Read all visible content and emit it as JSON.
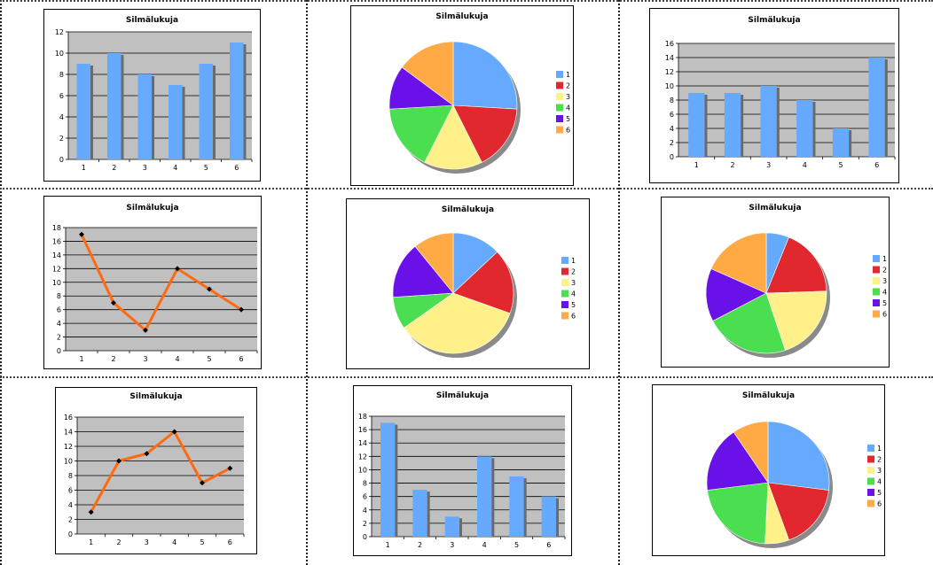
{
  "palette": [
    "#66aaff",
    "#e0282e",
    "#fff08a",
    "#4ade50",
    "#6a10e8",
    "#ffaa44"
  ],
  "line_color": "#ff6a10",
  "plot_bg": "#c0c0c0",
  "chart_data": [
    {
      "type": "bar",
      "title": "Silmälukuja",
      "categories": [
        "1",
        "2",
        "3",
        "4",
        "5",
        "6"
      ],
      "values": [
        9,
        10,
        8,
        7,
        9,
        11
      ],
      "ylim": [
        0,
        12
      ],
      "ystep": 2,
      "grid": true
    },
    {
      "type": "pie",
      "title": "Silmälukuja",
      "categories": [
        "1",
        "2",
        "3",
        "4",
        "5",
        "6"
      ],
      "values": [
        14,
        9,
        8,
        9,
        6,
        8
      ],
      "legend": "right"
    },
    {
      "type": "bar",
      "title": "Silmälukuja",
      "categories": [
        "1",
        "2",
        "3",
        "4",
        "5",
        "6"
      ],
      "values": [
        9,
        9,
        10,
        8,
        4,
        14
      ],
      "ylim": [
        0,
        16
      ],
      "ystep": 2,
      "grid": true
    },
    {
      "type": "line",
      "title": "Silmälukuja",
      "categories": [
        "1",
        "2",
        "3",
        "4",
        "5",
        "6"
      ],
      "values": [
        17,
        7,
        3,
        12,
        9,
        6
      ],
      "ylim": [
        0,
        18
      ],
      "ystep": 2,
      "grid": true
    },
    {
      "type": "pie",
      "title": "Silmälukuja",
      "categories": [
        "1",
        "2",
        "3",
        "4",
        "5",
        "6"
      ],
      "values": [
        6,
        8,
        16,
        4,
        7,
        5
      ],
      "legend": "right"
    },
    {
      "type": "pie",
      "title": "Silmälukuja",
      "categories": [
        "1",
        "2",
        "3",
        "4",
        "5",
        "6"
      ],
      "values": [
        3,
        9,
        10,
        11,
        7,
        9
      ],
      "legend": "right"
    },
    {
      "type": "line",
      "title": "Silmälukuja",
      "categories": [
        "1",
        "2",
        "3",
        "4",
        "5",
        "6"
      ],
      "values": [
        3,
        10,
        11,
        14,
        7,
        9
      ],
      "ylim": [
        0,
        16
      ],
      "ystep": 2,
      "grid": true
    },
    {
      "type": "bar",
      "title": "Silmälukuja",
      "categories": [
        "1",
        "2",
        "3",
        "4",
        "5",
        "6"
      ],
      "values": [
        17,
        7,
        3,
        12,
        9,
        6
      ],
      "ylim": [
        0,
        18
      ],
      "ystep": 2,
      "grid": true
    },
    {
      "type": "pie",
      "title": "Silmälukuja",
      "categories": [
        "1",
        "2",
        "3",
        "4",
        "5",
        "6"
      ],
      "values": [
        17,
        11,
        4,
        14,
        11,
        6
      ],
      "legend": "right"
    }
  ]
}
